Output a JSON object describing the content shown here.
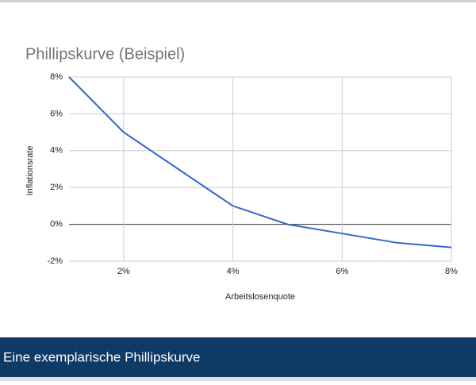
{
  "chart_data": {
    "type": "line",
    "title": "Phillipskurve (Beispiel)",
    "x_label": "Arbeitslosenquote",
    "y_label": "Inflationsrate",
    "x": [
      1,
      2,
      3,
      4,
      5,
      6,
      7,
      8
    ],
    "values": [
      8,
      5,
      3,
      1,
      0,
      -0.5,
      -1,
      -1.25
    ],
    "color": "#3366cc",
    "xlim": [
      1,
      8
    ],
    "xticks": [
      {
        "value": 2,
        "label": "2%"
      },
      {
        "value": 4,
        "label": "4%"
      },
      {
        "value": 6,
        "label": "6%"
      },
      {
        "value": 8,
        "label": "8%"
      }
    ],
    "ylim": [
      -2,
      8
    ],
    "yticks": [
      {
        "value": -2,
        "label": "-2%"
      },
      {
        "value": 0,
        "label": "0%"
      },
      {
        "value": 2,
        "label": "2%"
      },
      {
        "value": 4,
        "label": "4%"
      },
      {
        "value": 6,
        "label": "6%"
      },
      {
        "value": 8,
        "label": "8%"
      }
    ],
    "grid": true
  },
  "caption": "Eine exemplarische Phillipskurve"
}
